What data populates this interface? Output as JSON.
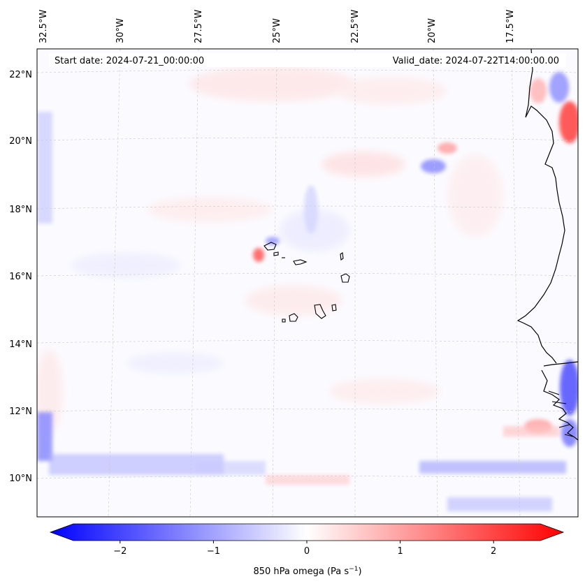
{
  "map": {
    "header": {
      "start_date": "Start date: 2024-07-21_00:00:00",
      "valid_date": "Valid_date: 2024-07-22T14:00:00.00"
    },
    "longitude_labels": [
      "32.5°W",
      "30°W",
      "27.5°W",
      "25°W",
      "22.5°W",
      "20°W",
      "17.5°W"
    ],
    "latitude_labels": [
      "22°N",
      "20°N",
      "18°N",
      "16°N",
      "14°N",
      "12°N",
      "10°N"
    ]
  },
  "colorbar": {
    "variable": "850 hPa omega",
    "units_base": "Pa s",
    "units_exponent": "−1",
    "label_open": "(",
    "label_close": ")",
    "ticks": [
      "−2",
      "−1",
      "0",
      "1",
      "2"
    ],
    "min": -2.7,
    "max": 2.7,
    "colors": {
      "negative": "#0000ff",
      "neutral": "#ffffff",
      "positive": "#ff0000"
    }
  }
}
